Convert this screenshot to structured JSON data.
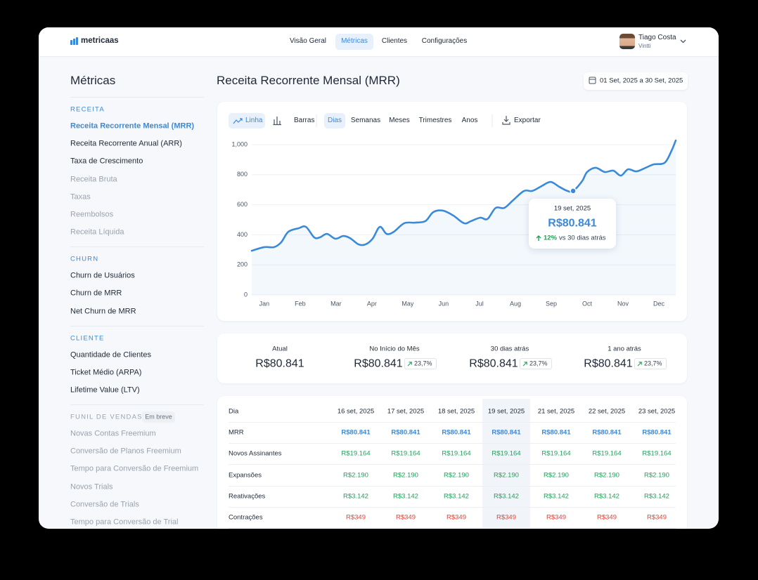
{
  "nav": {
    "logo": "metricaas",
    "items": [
      "Visão Geral",
      "Métricas",
      "Clientes",
      "Configurações"
    ],
    "active": 1
  },
  "user": {
    "name": "Tiago Costa",
    "company": "Vintti"
  },
  "sidebar": {
    "title": "Métricas",
    "sections": [
      {
        "heading": "RECEITA",
        "items": [
          {
            "label": "Receita Recorrente Mensal (MRR)",
            "state": "active"
          },
          {
            "label": "Receita Recorrente Anual (ARR)",
            "state": "normal"
          },
          {
            "label": "Taxa de Crescimento",
            "state": "normal"
          },
          {
            "label": "Receita Bruta",
            "state": "disabled"
          },
          {
            "label": "Taxas",
            "state": "disabled"
          },
          {
            "label": "Reembolsos",
            "state": "disabled"
          },
          {
            "label": "Receita Líquida",
            "state": "disabled"
          }
        ]
      },
      {
        "heading": "CHURN",
        "items": [
          {
            "label": "Churn de Usuários",
            "state": "normal"
          },
          {
            "label": "Churn de MRR",
            "state": "normal"
          },
          {
            "label": "Net Churn de MRR",
            "state": "normal"
          }
        ]
      },
      {
        "heading": "CLIENTE",
        "items": [
          {
            "label": "Quantidade de Clientes",
            "state": "normal"
          },
          {
            "label": "Ticket Médio (ARPA)",
            "state": "normal"
          },
          {
            "label": "Lifetime Value (LTV)",
            "state": "normal"
          }
        ]
      },
      {
        "heading": "FUNIL DE VENDAS",
        "badge": "Em breve",
        "items": [
          {
            "label": "Novas Contas Freemium",
            "state": "disabled"
          },
          {
            "label": "Conversão de Planos Freemium",
            "state": "disabled"
          },
          {
            "label": "Tempo para Conversão de Freemium",
            "state": "disabled"
          },
          {
            "label": "Novos Trials",
            "state": "disabled"
          },
          {
            "label": "Conversão de Trials",
            "state": "disabled"
          },
          {
            "label": "Tempo para Conversão de Trial",
            "state": "disabled"
          }
        ]
      }
    ]
  },
  "page": {
    "title": "Receita Recorrente Mensal (MRR)",
    "date_range": "01 Set, 2025 a 30 Set, 2025"
  },
  "toolbar": {
    "chart_types": {
      "items": [
        "Linha",
        "Barras"
      ],
      "active": 0
    },
    "periods": {
      "items": [
        "Dias",
        "Semanas",
        "Meses",
        "Trimestres",
        "Anos"
      ],
      "active": 0
    },
    "export": "Exportar"
  },
  "chart_data": {
    "type": "line",
    "x": [
      -0.35,
      0,
      0.27,
      0.47,
      0.67,
      0.96,
      1.16,
      1.39,
      1.55,
      1.75,
      1.98,
      2.2,
      2.39,
      2.63,
      2.82,
      3.02,
      3.22,
      3.41,
      3.61,
      3.9,
      4.2,
      4.49,
      4.71,
      4.98,
      5.27,
      5.57,
      5.76,
      6.02,
      6.22,
      6.45,
      6.69,
      6.94,
      7.24,
      7.47,
      7.73,
      7.98,
      8.22,
      8.45,
      8.61,
      8.86,
      9.0,
      9.24,
      9.49,
      9.73,
      9.94,
      10.14,
      10.37,
      10.63,
      10.86,
      11.16,
      11.35,
      11.47
    ],
    "series": [
      {
        "name": "MRR",
        "color": "#3b8ad9",
        "values": [
          294,
          318,
          318,
          350,
          420,
          444,
          453,
          383,
          383,
          406,
          374,
          392,
          378,
          336,
          336,
          374,
          453,
          406,
          420,
          477,
          481,
          491,
          551,
          561,
          528,
          477,
          491,
          514,
          505,
          579,
          579,
          631,
          692,
          692,
          724,
          752,
          720,
          692,
          692,
          757,
          818,
          846,
          818,
          827,
          794,
          836,
          822,
          846,
          869,
          879,
          958,
          1028
        ]
      }
    ],
    "xlim": [
      -0.35,
      11.47
    ],
    "xticks": [
      {
        "value": 0,
        "label": "Jan"
      },
      {
        "value": 1,
        "label": "Feb"
      },
      {
        "value": 2,
        "label": "Mar"
      },
      {
        "value": 3,
        "label": "Apr"
      },
      {
        "value": 4,
        "label": "May"
      },
      {
        "value": 5,
        "label": "Jun"
      },
      {
        "value": 6,
        "label": "Jul"
      },
      {
        "value": 7,
        "label": "Aug"
      },
      {
        "value": 8,
        "label": "Sep"
      },
      {
        "value": 9,
        "label": "Oct"
      },
      {
        "value": 10,
        "label": "Nov"
      },
      {
        "value": 11,
        "label": "Dec"
      }
    ],
    "ylim": [
      0,
      1000
    ],
    "yticks": [
      0,
      200,
      400,
      600,
      800,
      {
        "value": 1000,
        "label": "1,000"
      }
    ],
    "grid": true,
    "tooltip": {
      "date": "19 set, 2025",
      "value": "R$80.841",
      "change": "12%",
      "comparison": "vs 30 dias atrás"
    }
  },
  "stats": [
    {
      "label": "Atual",
      "value": "R$80.841"
    },
    {
      "label": "No Início do Mês",
      "value": "R$80.841",
      "change": "23,7%"
    },
    {
      "label": "30 dias atrás",
      "value": "R$80.841",
      "change": "23,7%"
    },
    {
      "label": "1 ano atrás",
      "value": "R$80.841",
      "change": "23,7%"
    }
  ],
  "table": {
    "header": [
      "Dia",
      "16 set, 2025",
      "17 set, 2025",
      "18 set, 2025",
      "19 set, 2025",
      "21 set, 2025",
      "22 set, 2025",
      "23 set, 2025"
    ],
    "highlight_column": 4,
    "rows": [
      {
        "cells": [
          "MRR",
          "R$80.841",
          "R$80.841",
          "R$80.841",
          "R$80.841",
          "R$80.841",
          "R$80.841",
          "R$80.841"
        ],
        "color": "#3b8ad9"
      },
      {
        "cells": [
          "Novos Assinantes",
          "R$19.164",
          "R$19.164",
          "R$19.164",
          "R$19.164",
          "R$19.164",
          "R$19.164",
          "R$19.164"
        ],
        "color": "#23a05b"
      },
      {
        "cells": [
          "Expansões",
          "R$2.190",
          "R$2.190",
          "R$2.190",
          "R$2.190",
          "R$2.190",
          "R$2.190",
          "R$2.190"
        ],
        "color": "#23a05b"
      },
      {
        "cells": [
          "Reativações",
          "R$3.142",
          "R$3.142",
          "R$3.142",
          "R$3.142",
          "R$3.142",
          "R$3.142",
          "R$3.142"
        ],
        "color": "#23a05b"
      },
      {
        "cells": [
          "Contrações",
          "R$349",
          "R$349",
          "R$349",
          "R$349",
          "R$349",
          "R$349",
          "R$349"
        ],
        "color": "#d9493c"
      }
    ]
  }
}
